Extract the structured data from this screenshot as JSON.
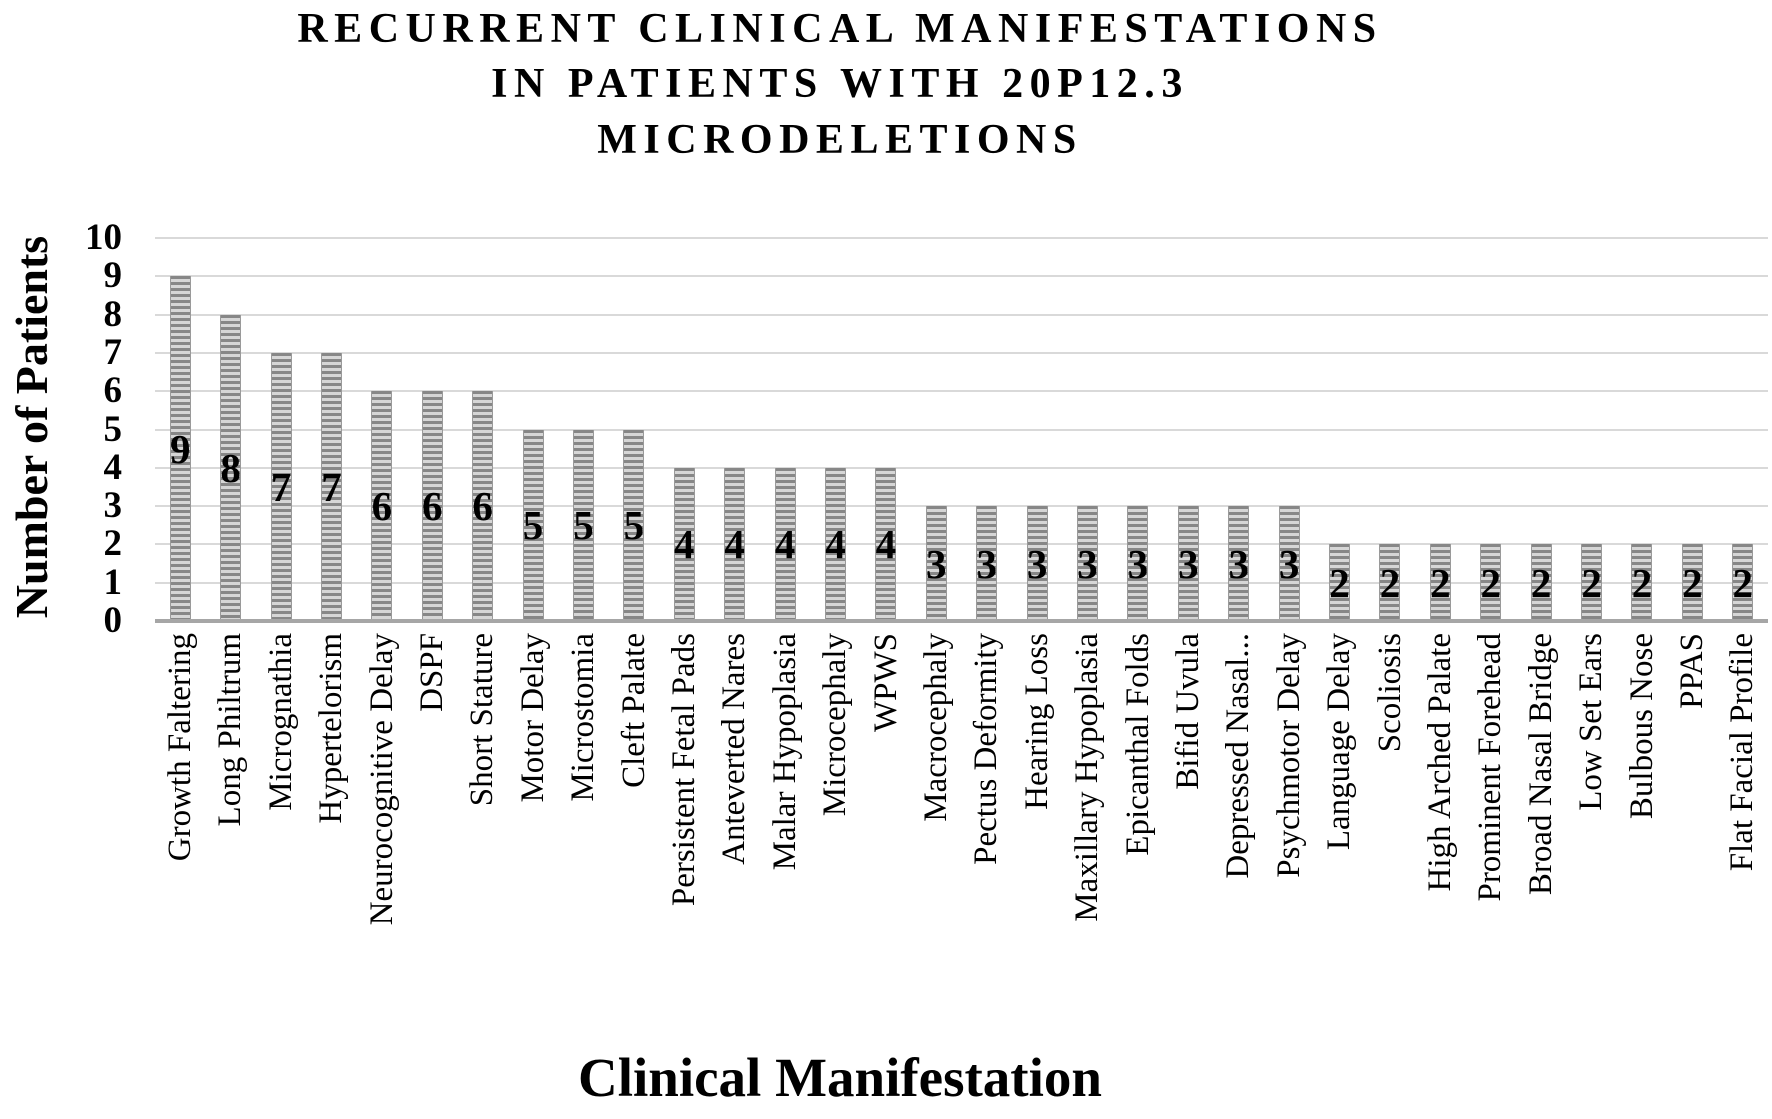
{
  "title": {
    "lines": [
      "RECURRENT CLINICAL MANIFESTATIONS",
      "IN PATIENTS WITH 20P12.3",
      "MICRODELETIONS"
    ]
  },
  "chart_data": {
    "type": "bar",
    "title": "RECURRENT CLINICAL MANIFESTATIONS IN PATIENTS WITH 20P12.3 MICRODELETIONS",
    "xlabel": "Clinical Manifestation",
    "ylabel": "Number of Patients",
    "ylim": [
      0,
      10
    ],
    "ytick_step": 1,
    "ytick_labels": [
      "0",
      "1",
      "2",
      "3",
      "4",
      "5",
      "6",
      "7",
      "8",
      "9",
      "10"
    ],
    "grid": true,
    "legend": false,
    "data_label_position": "center",
    "bar_pattern": "horizontal-stripes",
    "colors": {
      "bar_stripe_dark": "#878787",
      "bar_stripe_light": "#d6d6d6",
      "gridline": "#d9d9d9",
      "axis_line": "#a6a6a6",
      "text": "#000000"
    },
    "categories": [
      "Growth Faltering",
      "Long Philtrum",
      "Micrognathia",
      "Hypertelorism",
      "Neurocognitive Delay",
      "DSPF",
      "Short Stature",
      "Motor Delay",
      "Microstomia",
      "Cleft Palate",
      "Persistent Fetal Pads",
      "Anteverted Nares",
      "Malar Hypoplasia",
      "Microcephaly",
      "WPWS",
      "Macrocephaly",
      "Pectus Deformity",
      "Hearing Loss",
      "Maxillary Hypoplasia",
      "Epicanthal Folds",
      "Bifid Uvula",
      "Depressed Nasal...",
      "Psychmotor Delay",
      "Language Delay",
      "Scoliosis",
      "High Arched Palate",
      "Prominent Forehead",
      "Broad Nasal Bridge",
      "Low Set Ears",
      "Bulbous Nose",
      "PPAS",
      "Flat Facial Profile"
    ],
    "values": [
      9,
      8,
      7,
      7,
      6,
      6,
      6,
      5,
      5,
      5,
      4,
      4,
      4,
      4,
      4,
      3,
      3,
      3,
      3,
      3,
      3,
      3,
      3,
      2,
      2,
      2,
      2,
      2,
      2,
      2,
      2,
      2
    ]
  }
}
